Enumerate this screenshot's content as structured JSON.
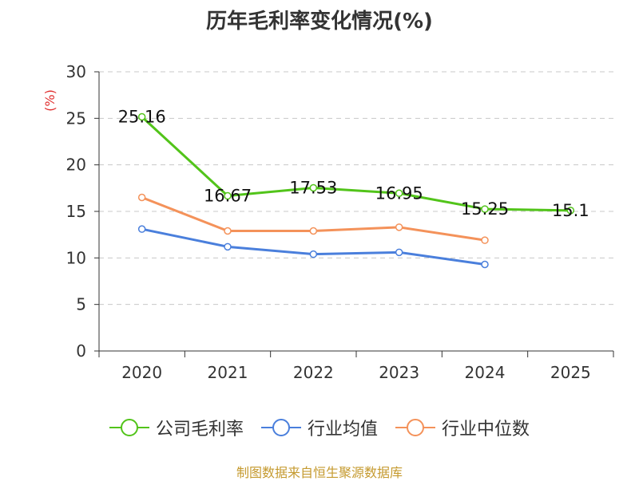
{
  "chart_data": {
    "type": "line",
    "title": "历年毛利率变化情况(%)",
    "ylabel": "(%)",
    "xlabel": "",
    "categories": [
      "2020",
      "2021",
      "2022",
      "2023",
      "2024",
      "2025"
    ],
    "ylim": [
      0,
      30
    ],
    "yticks": [
      0,
      5,
      10,
      15,
      20,
      25,
      30
    ],
    "grid": true,
    "legend_position": "bottom",
    "series": [
      {
        "name": "公司毛利率",
        "color": "#52c41a",
        "values": [
          25.16,
          16.67,
          17.53,
          16.95,
          15.25,
          15.1
        ],
        "labels": [
          "25.16",
          "16.67",
          "17.53",
          "16.95",
          "15.25",
          "15.1"
        ]
      },
      {
        "name": "行业均值",
        "color": "#4a7fdc",
        "values": [
          13.1,
          11.2,
          10.4,
          10.6,
          9.3,
          null
        ]
      },
      {
        "name": "行业中位数",
        "color": "#f4925a",
        "values": [
          16.5,
          12.9,
          12.9,
          13.3,
          11.9,
          null
        ]
      }
    ]
  },
  "source": "制图数据来自恒生聚源数据库"
}
